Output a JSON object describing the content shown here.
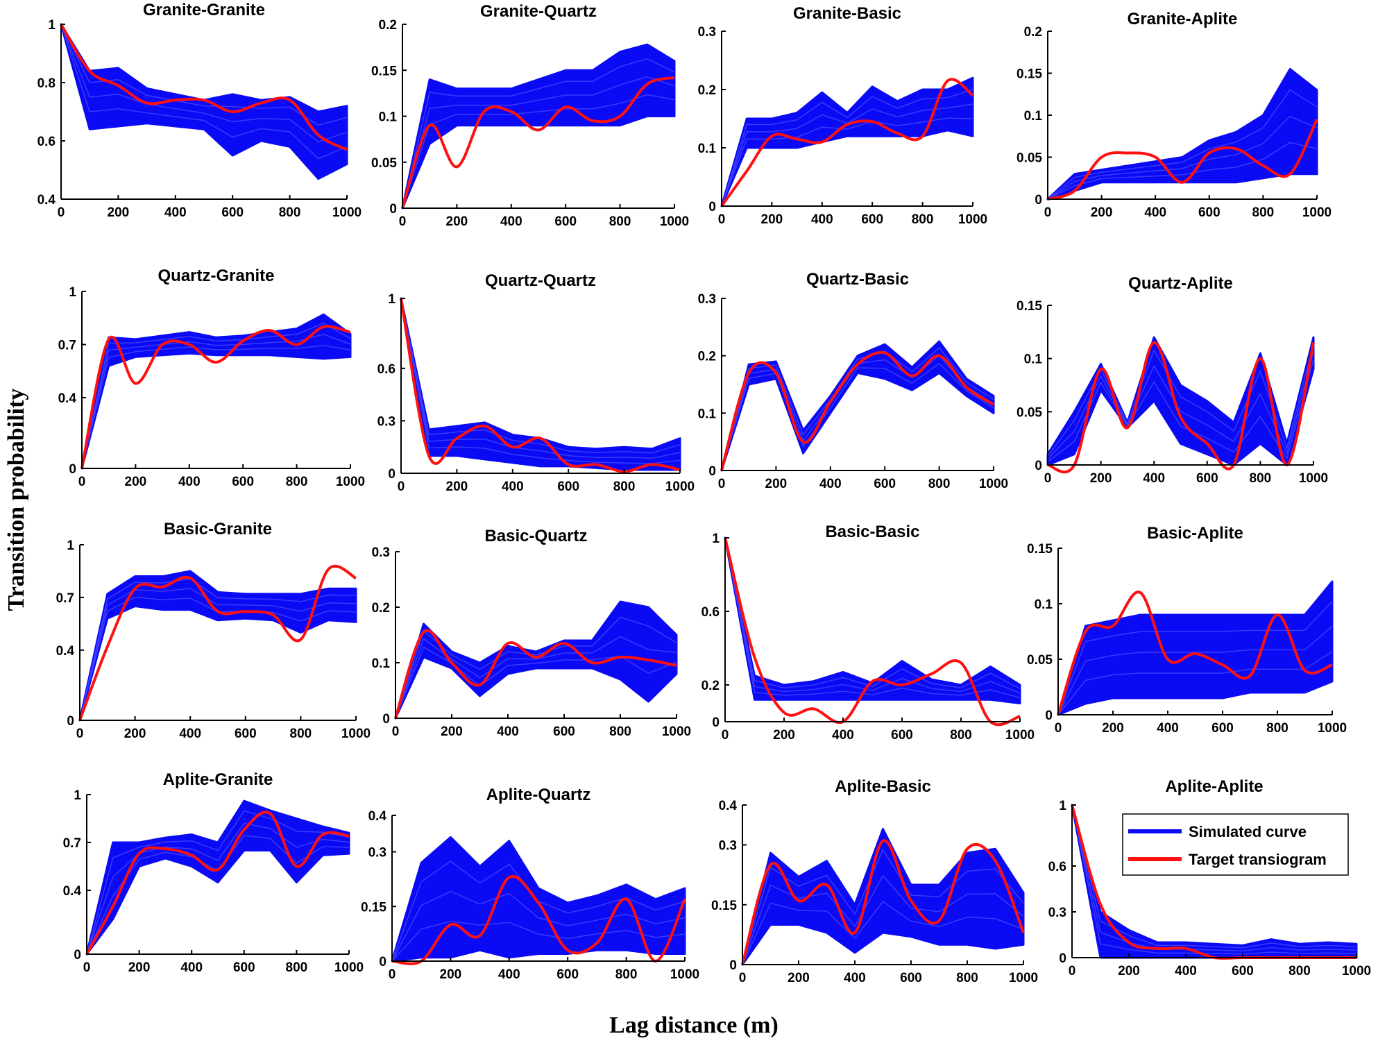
{
  "figure": {
    "ylabel": "Transition probability",
    "xlabel": "Lag distance (m)"
  },
  "legend": {
    "items": [
      {
        "label": "Simulated curve",
        "color": "#0a0af5"
      },
      {
        "label": "Target transiogram",
        "color": "#ff1010"
      }
    ]
  },
  "colors": {
    "simulated": "#0a0af5",
    "target": "#ff1010"
  },
  "chart_data": [
    {
      "type": "line",
      "title": "Granite-Granite",
      "xlim": [
        0,
        1000
      ],
      "ylim": [
        0.4,
        1
      ],
      "yticks": [
        0.4,
        0.6,
        0.8,
        1
      ],
      "ytick_labels": [
        "0.4",
        "0.6",
        "0.8",
        "1"
      ],
      "xticks": [
        0,
        200,
        400,
        600,
        800,
        1000
      ],
      "x": [
        0,
        100,
        200,
        300,
        400,
        500,
        600,
        700,
        800,
        900,
        1000
      ],
      "sim_low": [
        1,
        0.64,
        0.65,
        0.66,
        0.65,
        0.64,
        0.55,
        0.6,
        0.58,
        0.47,
        0.52
      ],
      "sim_high": [
        1,
        0.84,
        0.85,
        0.78,
        0.76,
        0.74,
        0.76,
        0.74,
        0.75,
        0.7,
        0.72
      ],
      "target": [
        1,
        0.84,
        0.79,
        0.73,
        0.74,
        0.74,
        0.7,
        0.73,
        0.74,
        0.62,
        0.57
      ]
    },
    {
      "type": "line",
      "title": "Granite-Quartz",
      "xlim": [
        0,
        1000
      ],
      "ylim": [
        0,
        0.2
      ],
      "yticks": [
        0,
        0.05,
        0.1,
        0.15,
        0.2
      ],
      "ytick_labels": [
        "0",
        "0.05",
        "0.1",
        "0.15",
        "0.2"
      ],
      "xticks": [
        0,
        200,
        400,
        600,
        800,
        1000
      ],
      "x": [
        0,
        100,
        200,
        300,
        400,
        500,
        600,
        700,
        800,
        900,
        1000
      ],
      "sim_low": [
        0,
        0.07,
        0.09,
        0.09,
        0.09,
        0.09,
        0.09,
        0.09,
        0.09,
        0.1,
        0.1
      ],
      "sim_high": [
        0,
        0.14,
        0.13,
        0.13,
        0.13,
        0.14,
        0.15,
        0.15,
        0.17,
        0.178,
        0.16
      ],
      "target": [
        0,
        0.09,
        0.045,
        0.105,
        0.105,
        0.085,
        0.11,
        0.095,
        0.1,
        0.135,
        0.142
      ]
    },
    {
      "type": "line",
      "title": "Granite-Basic",
      "xlim": [
        0,
        1000
      ],
      "ylim": [
        0,
        0.3
      ],
      "yticks": [
        0,
        0.1,
        0.2,
        0.3
      ],
      "ytick_labels": [
        "0",
        "0.1",
        "0.2",
        "0.3"
      ],
      "xticks": [
        0,
        200,
        400,
        600,
        800,
        1000
      ],
      "x": [
        0,
        100,
        200,
        300,
        400,
        500,
        600,
        700,
        800,
        900,
        1000
      ],
      "sim_low": [
        0,
        0.1,
        0.1,
        0.1,
        0.11,
        0.12,
        0.12,
        0.12,
        0.12,
        0.13,
        0.12
      ],
      "sim_high": [
        0,
        0.15,
        0.15,
        0.16,
        0.195,
        0.16,
        0.205,
        0.18,
        0.2,
        0.2,
        0.22
      ],
      "target": [
        0,
        0.06,
        0.12,
        0.115,
        0.11,
        0.14,
        0.145,
        0.125,
        0.12,
        0.215,
        0.19
      ]
    },
    {
      "type": "line",
      "title": "Granite-Aplite",
      "xlim": [
        0,
        1000
      ],
      "ylim": [
        0,
        0.2
      ],
      "yticks": [
        0,
        0.05,
        0.1,
        0.15,
        0.2
      ],
      "ytick_labels": [
        "0",
        "0.05",
        "0.1",
        "0.15",
        "0.2"
      ],
      "xticks": [
        0,
        200,
        400,
        600,
        800,
        1000
      ],
      "x": [
        0,
        100,
        200,
        300,
        400,
        500,
        600,
        700,
        800,
        900,
        1000
      ],
      "sim_low": [
        0,
        0.01,
        0.02,
        0.02,
        0.02,
        0.02,
        0.02,
        0.02,
        0.025,
        0.03,
        0.03
      ],
      "sim_high": [
        0,
        0.03,
        0.035,
        0.04,
        0.045,
        0.05,
        0.07,
        0.08,
        0.1,
        0.155,
        0.13
      ],
      "target": [
        0,
        0.01,
        0.05,
        0.055,
        0.05,
        0.02,
        0.055,
        0.06,
        0.04,
        0.03,
        0.095
      ]
    },
    {
      "type": "line",
      "title": "Quartz-Granite",
      "xlim": [
        0,
        1000
      ],
      "ylim": [
        0,
        1
      ],
      "yticks": [
        0,
        0.4,
        0.7,
        1
      ],
      "ytick_labels": [
        "0",
        "0.4",
        "0.7",
        "1"
      ],
      "xticks": [
        0,
        200,
        400,
        600,
        800,
        1000
      ],
      "x": [
        0,
        100,
        200,
        300,
        400,
        500,
        600,
        700,
        800,
        900,
        1000
      ],
      "sim_low": [
        0,
        0.58,
        0.63,
        0.64,
        0.65,
        0.64,
        0.64,
        0.64,
        0.63,
        0.62,
        0.63
      ],
      "sim_high": [
        0,
        0.74,
        0.73,
        0.75,
        0.77,
        0.74,
        0.75,
        0.77,
        0.79,
        0.87,
        0.76
      ],
      "target": [
        0,
        0.73,
        0.48,
        0.7,
        0.7,
        0.6,
        0.72,
        0.78,
        0.7,
        0.8,
        0.77
      ]
    },
    {
      "type": "line",
      "title": "Quartz-Quartz",
      "xlim": [
        0,
        1000
      ],
      "ylim": [
        0,
        1
      ],
      "yticks": [
        0,
        0.3,
        0.6,
        1
      ],
      "ytick_labels": [
        "0",
        "0.3",
        "0.6",
        "1"
      ],
      "xticks": [
        0,
        200,
        400,
        600,
        800,
        1000
      ],
      "x": [
        0,
        100,
        200,
        300,
        400,
        500,
        600,
        700,
        800,
        900,
        1000
      ],
      "sim_low": [
        1,
        0.1,
        0.1,
        0.08,
        0.06,
        0.04,
        0.04,
        0.03,
        0.02,
        0.02,
        0.02
      ],
      "sim_high": [
        1,
        0.25,
        0.27,
        0.29,
        0.22,
        0.2,
        0.15,
        0.14,
        0.15,
        0.14,
        0.2
      ],
      "target": [
        1,
        0.1,
        0.2,
        0.27,
        0.15,
        0.2,
        0.05,
        0.05,
        0.01,
        0.05,
        0.02
      ]
    },
    {
      "type": "line",
      "title": "Quartz-Basic",
      "xlim": [
        0,
        1000
      ],
      "ylim": [
        0,
        0.3
      ],
      "yticks": [
        0,
        0.1,
        0.2,
        0.3
      ],
      "ytick_labels": [
        "0",
        "0.1",
        "0.2",
        "0.3"
      ],
      "xticks": [
        0,
        200,
        400,
        600,
        800,
        1000
      ],
      "x": [
        0,
        100,
        200,
        300,
        400,
        500,
        600,
        700,
        800,
        900,
        1000
      ],
      "sim_low": [
        0,
        0.15,
        0.16,
        0.03,
        0.1,
        0.17,
        0.16,
        0.14,
        0.17,
        0.13,
        0.1
      ],
      "sim_high": [
        0,
        0.185,
        0.19,
        0.07,
        0.13,
        0.2,
        0.22,
        0.18,
        0.225,
        0.16,
        0.13
      ],
      "target": [
        0,
        0.17,
        0.17,
        0.05,
        0.12,
        0.185,
        0.205,
        0.165,
        0.2,
        0.145,
        0.115
      ]
    },
    {
      "type": "line",
      "title": "Quartz-Aplite",
      "xlim": [
        0,
        1000
      ],
      "ylim": [
        0,
        0.15
      ],
      "yticks": [
        0,
        0.05,
        0.1,
        0.15
      ],
      "ytick_labels": [
        "0",
        "0.05",
        "0.1",
        "0.15"
      ],
      "xticks": [
        0,
        200,
        400,
        600,
        800,
        1000
      ],
      "x": [
        0,
        100,
        200,
        300,
        400,
        500,
        600,
        700,
        800,
        900,
        1000
      ],
      "sim_low": [
        0,
        0.01,
        0.07,
        0.035,
        0.06,
        0.02,
        0.01,
        0,
        0.02,
        0,
        0.09
      ],
      "sim_high": [
        0.01,
        0.05,
        0.095,
        0.04,
        0.12,
        0.075,
        0.06,
        0.04,
        0.105,
        0.02,
        0.12
      ],
      "target": [
        0,
        0,
        0.09,
        0.035,
        0.115,
        0.045,
        0.02,
        0,
        0.1,
        0,
        0.115
      ]
    },
    {
      "type": "line",
      "title": "Basic-Granite",
      "xlim": [
        0,
        1000
      ],
      "ylim": [
        0,
        1
      ],
      "yticks": [
        0,
        0.4,
        0.7,
        1
      ],
      "ytick_labels": [
        "0",
        "0.4",
        "0.7",
        "1"
      ],
      "xticks": [
        0,
        200,
        400,
        600,
        800,
        1000
      ],
      "x": [
        0,
        100,
        200,
        300,
        400,
        500,
        600,
        700,
        800,
        900,
        1000
      ],
      "sim_low": [
        0,
        0.58,
        0.65,
        0.63,
        0.63,
        0.57,
        0.58,
        0.57,
        0.5,
        0.57,
        0.56
      ],
      "sim_high": [
        0,
        0.72,
        0.82,
        0.82,
        0.85,
        0.73,
        0.72,
        0.72,
        0.72,
        0.75,
        0.75
      ],
      "target": [
        0,
        0.42,
        0.75,
        0.76,
        0.81,
        0.62,
        0.62,
        0.6,
        0.46,
        0.86,
        0.81
      ]
    },
    {
      "type": "line",
      "title": "Basic-Quartz",
      "xlim": [
        0,
        1000
      ],
      "ylim": [
        0,
        0.3
      ],
      "yticks": [
        0,
        0.1,
        0.2,
        0.3
      ],
      "ytick_labels": [
        "0",
        "0.1",
        "0.2",
        "0.3"
      ],
      "xticks": [
        0,
        200,
        400,
        600,
        800,
        1000
      ],
      "x": [
        0,
        100,
        200,
        300,
        400,
        500,
        600,
        700,
        800,
        900,
        1000
      ],
      "sim_low": [
        0,
        0.11,
        0.09,
        0.04,
        0.08,
        0.09,
        0.09,
        0.09,
        0.07,
        0.03,
        0.08
      ],
      "sim_high": [
        0,
        0.17,
        0.12,
        0.1,
        0.13,
        0.12,
        0.14,
        0.14,
        0.21,
        0.2,
        0.15
      ],
      "target": [
        0,
        0.155,
        0.1,
        0.06,
        0.135,
        0.11,
        0.135,
        0.1,
        0.11,
        0.105,
        0.095
      ]
    },
    {
      "type": "line",
      "title": "Basic-Basic",
      "xlim": [
        0,
        1000
      ],
      "ylim": [
        0,
        1
      ],
      "yticks": [
        0,
        0.2,
        0.6,
        1
      ],
      "ytick_labels": [
        "0",
        "0.2",
        "0.6",
        "1"
      ],
      "xticks": [
        0,
        200,
        400,
        600,
        800,
        1000
      ],
      "x": [
        0,
        100,
        200,
        300,
        400,
        500,
        600,
        700,
        800,
        900,
        1000
      ],
      "sim_low": [
        1,
        0.12,
        0.12,
        0.12,
        0.12,
        0.12,
        0.12,
        0.12,
        0.12,
        0.12,
        0.1
      ],
      "sim_high": [
        1,
        0.25,
        0.2,
        0.22,
        0.27,
        0.21,
        0.33,
        0.23,
        0.2,
        0.3,
        0.2
      ],
      "target": [
        1,
        0.35,
        0.05,
        0.07,
        0.0,
        0.22,
        0.2,
        0.26,
        0.32,
        0.0,
        0.03
      ]
    },
    {
      "type": "line",
      "title": "Basic-Aplite",
      "xlim": [
        0,
        1000
      ],
      "ylim": [
        0,
        0.15
      ],
      "yticks": [
        0,
        0.05,
        0.1,
        0.15
      ],
      "ytick_labels": [
        "0",
        "0.05",
        "0.1",
        "0.15"
      ],
      "xticks": [
        0,
        200,
        400,
        600,
        800,
        1000
      ],
      "x": [
        0,
        100,
        200,
        300,
        400,
        500,
        600,
        700,
        800,
        900,
        1000
      ],
      "sim_low": [
        0,
        0.01,
        0.015,
        0.015,
        0.015,
        0.015,
        0.015,
        0.02,
        0.02,
        0.02,
        0.03
      ],
      "sim_high": [
        0,
        0.08,
        0.085,
        0.09,
        0.09,
        0.09,
        0.09,
        0.09,
        0.09,
        0.09,
        0.12
      ],
      "target": [
        0,
        0.075,
        0.08,
        0.11,
        0.05,
        0.055,
        0.045,
        0.035,
        0.09,
        0.04,
        0.045
      ]
    },
    {
      "type": "line",
      "title": "Aplite-Granite",
      "xlim": [
        0,
        1000
      ],
      "ylim": [
        0,
        1
      ],
      "yticks": [
        0,
        0.4,
        0.7,
        1
      ],
      "ytick_labels": [
        "0",
        "0.4",
        "0.7",
        "1"
      ],
      "xticks": [
        0,
        200,
        400,
        600,
        800,
        1000
      ],
      "x": [
        0,
        100,
        200,
        300,
        400,
        500,
        600,
        700,
        800,
        900,
        1000
      ],
      "sim_low": [
        0,
        0.22,
        0.55,
        0.6,
        0.55,
        0.45,
        0.65,
        0.65,
        0.45,
        0.62,
        0.63
      ],
      "sim_high": [
        0,
        0.7,
        0.7,
        0.73,
        0.75,
        0.7,
        0.96,
        0.9,
        0.85,
        0.8,
        0.76
      ],
      "target": [
        0,
        0.3,
        0.63,
        0.66,
        0.62,
        0.53,
        0.78,
        0.88,
        0.55,
        0.75,
        0.74
      ]
    },
    {
      "type": "line",
      "title": "Aplite-Quartz",
      "xlim": [
        0,
        1000
      ],
      "ylim": [
        0,
        0.4
      ],
      "yticks": [
        0,
        0.15,
        0.3,
        0.4
      ],
      "ytick_labels": [
        "0",
        "0.15",
        "0.3",
        "0.4"
      ],
      "xticks": [
        0,
        200,
        400,
        600,
        800,
        1000
      ],
      "x": [
        0,
        100,
        200,
        300,
        400,
        500,
        600,
        700,
        800,
        900,
        1000
      ],
      "sim_low": [
        0,
        0.01,
        0.01,
        0.03,
        0.01,
        0.02,
        0.02,
        0.03,
        0.03,
        0.02,
        0.02
      ],
      "sim_high": [
        0,
        0.27,
        0.34,
        0.26,
        0.33,
        0.2,
        0.16,
        0.18,
        0.21,
        0.17,
        0.2
      ],
      "target": [
        0,
        0.0,
        0.1,
        0.07,
        0.23,
        0.16,
        0.03,
        0.05,
        0.17,
        0.0,
        0.17
      ]
    },
    {
      "type": "line",
      "title": "Aplite-Basic",
      "xlim": [
        0,
        1000
      ],
      "ylim": [
        0,
        0.4
      ],
      "yticks": [
        0,
        0.15,
        0.3,
        0.4
      ],
      "ytick_labels": [
        "0",
        "0.15",
        "0.3",
        "0.4"
      ],
      "xticks": [
        0,
        200,
        400,
        600,
        800,
        1000
      ],
      "x": [
        0,
        100,
        200,
        300,
        400,
        500,
        600,
        700,
        800,
        900,
        1000
      ],
      "sim_low": [
        0,
        0.1,
        0.1,
        0.08,
        0.03,
        0.08,
        0.07,
        0.05,
        0.05,
        0.04,
        0.05
      ],
      "sim_high": [
        0,
        0.28,
        0.22,
        0.26,
        0.15,
        0.34,
        0.2,
        0.2,
        0.28,
        0.29,
        0.18
      ],
      "target": [
        0,
        0.25,
        0.16,
        0.2,
        0.08,
        0.31,
        0.16,
        0.11,
        0.29,
        0.26,
        0.08
      ]
    },
    {
      "type": "line",
      "title": "Aplite-Aplite",
      "xlim": [
        0,
        1000
      ],
      "ylim": [
        0,
        1
      ],
      "yticks": [
        0,
        0.3,
        0.6,
        1
      ],
      "ytick_labels": [
        "0",
        "0.3",
        "0.6",
        "1"
      ],
      "xticks": [
        0,
        200,
        400,
        600,
        800,
        1000
      ],
      "x": [
        0,
        100,
        200,
        300,
        400,
        500,
        600,
        700,
        800,
        900,
        1000
      ],
      "sim_low": [
        1,
        0.0,
        0.0,
        0.0,
        0.0,
        0.0,
        0.0,
        0.0,
        0.0,
        0.0,
        0.0
      ],
      "sim_high": [
        1,
        0.3,
        0.18,
        0.1,
        0.1,
        0.09,
        0.08,
        0.12,
        0.09,
        0.1,
        0.09
      ],
      "target": [
        1,
        0.35,
        0.1,
        0.06,
        0.06,
        0.0,
        0.0,
        0.0,
        0.0,
        0.0,
        0.0
      ],
      "legend": true
    }
  ]
}
